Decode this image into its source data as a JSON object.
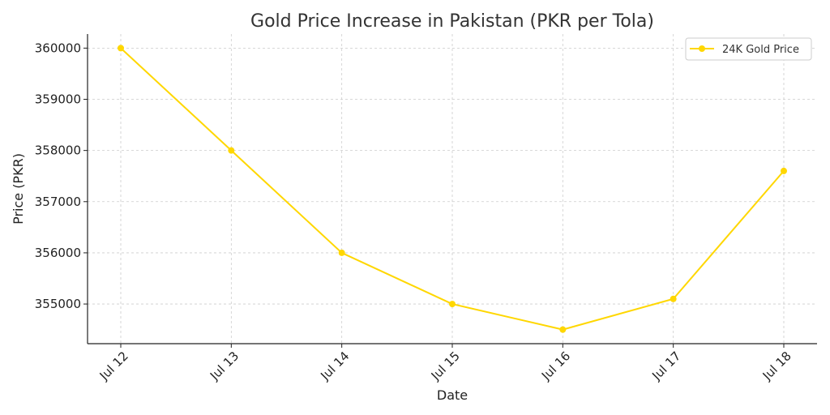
{
  "chart_data": {
    "type": "line",
    "title": "Gold Price Increase in Pakistan (PKR per Tola)",
    "xlabel": "Date",
    "ylabel": "Price (PKR)",
    "categories": [
      "Jul 12",
      "Jul 13",
      "Jul 14",
      "Jul 15",
      "Jul 16",
      "Jul 17",
      "Jul 18"
    ],
    "series": [
      {
        "name": "24K Gold Price",
        "color": "#FFD700",
        "values": [
          360000,
          358000,
          356000,
          355000,
          354500,
          355100,
          357600
        ]
      }
    ],
    "yticks": [
      355000,
      356000,
      357000,
      358000,
      359000,
      360000
    ],
    "ylim": [
      354225,
      360275
    ],
    "grid": true,
    "legend_position": "top-right"
  }
}
